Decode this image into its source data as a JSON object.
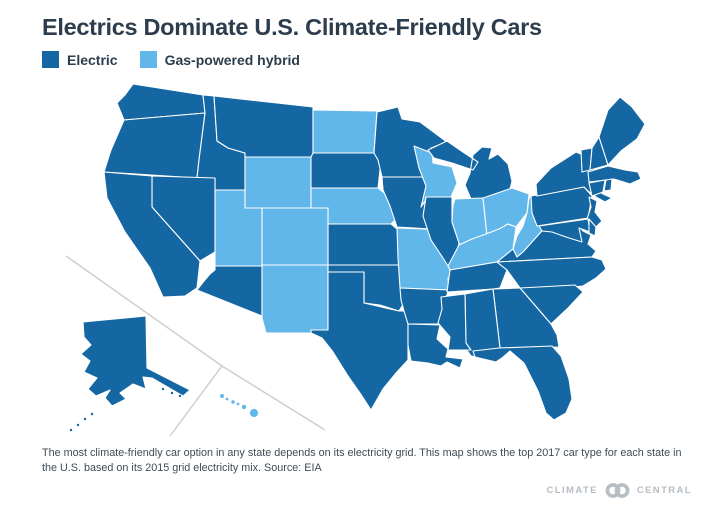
{
  "header": {
    "title": "Electrics Dominate U.S. Climate-Friendly Cars"
  },
  "legend": {
    "items": [
      {
        "label": "Electric",
        "key": "electric"
      },
      {
        "label": "Gas-powered hybrid",
        "key": "hybrid"
      }
    ]
  },
  "footer": {
    "caption": "The most climate-friendly car option in any state depends on its electricity grid. This map shows the top 2017 car type for each state in the U.S. based on its 2015 grid electricity mix. Source: EIA"
  },
  "branding": {
    "left": "CLIMATE",
    "right": "CENTRAL",
    "logo": "interlocking-rings"
  },
  "chart_data": {
    "type": "choropleth_map",
    "title": "Electrics Dominate U.S. Climate-Friendly Cars",
    "legend": [
      "Electric",
      "Gas-powered hybrid"
    ],
    "source": "EIA",
    "colors": {
      "electric": "#1467A2",
      "hybrid": "#61B6EA",
      "state_border": "#FFFFFF",
      "inset_divider": "#C9CED2"
    },
    "categories": {
      "electric": [
        "WA",
        "OR",
        "CA",
        "ID",
        "NV",
        "AZ",
        "MT",
        "SD",
        "KS",
        "OK",
        "TX",
        "MN",
        "IA",
        "AR",
        "LA",
        "MS",
        "AL",
        "TN",
        "IL",
        "MI",
        "GA",
        "FL",
        "SC",
        "NC",
        "VA",
        "PA",
        "NY",
        "NJ",
        "DE",
        "MD",
        "CT",
        "RI",
        "MA",
        "VT",
        "NH",
        "ME",
        "AK"
      ],
      "hybrid": [
        "ND",
        "NE",
        "WY",
        "UT",
        "CO",
        "NM",
        "MO",
        "WI",
        "IN",
        "OH",
        "KY",
        "WV",
        "HI"
      ]
    }
  }
}
